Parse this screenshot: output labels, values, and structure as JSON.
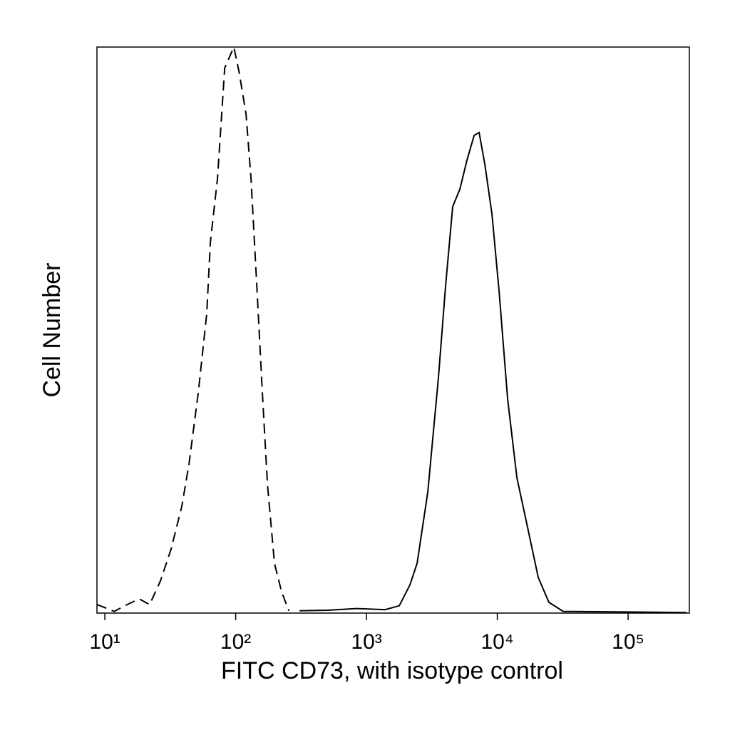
{
  "chart_data": {
    "type": "line",
    "xlabel": "FITC CD73, with isotype control",
    "ylabel": "Cell Number",
    "xscale": "log",
    "xlim": [
      8.7,
      294000
    ],
    "ylim": [
      0,
      100
    ],
    "xticks": [
      {
        "value": 10,
        "label": "10¹"
      },
      {
        "value": 100,
        "label": "10²"
      },
      {
        "value": 1000,
        "label": "10³"
      },
      {
        "value": 10000,
        "label": "10⁴"
      },
      {
        "value": 100000,
        "label": "10⁵"
      }
    ],
    "series": [
      {
        "color": "#000000",
        "line_style": "dashed",
        "x": [
          8.71,
          11.8,
          14.2,
          18.3,
          22.0,
          26.6,
          32.1,
          38.8,
          44.0,
          51.8,
          60.1,
          64.1,
          72.6,
          82.4,
          96.8,
          106,
          120,
          131,
          145,
          160,
          175,
          198,
          224,
          255
        ],
        "values": [
          1.5,
          0.3,
          1.3,
          2.5,
          1.5,
          5.7,
          11.3,
          18.9,
          26.4,
          39.0,
          52.9,
          65.5,
          76.8,
          96.3,
          100,
          95.7,
          88.2,
          76.8,
          57.9,
          39.0,
          22.7,
          8.8,
          3.8,
          0.4
        ]
      },
      {
        "color": "#000000",
        "line_style": "solid",
        "x": [
          308,
          508,
          839,
          1387,
          1782,
          2150,
          2438,
          2944,
          3550,
          4027,
          4560,
          5176,
          5863,
          6650,
          7260,
          8035,
          9100,
          10330,
          12000,
          14130,
          17060,
          20560,
          24830,
          31900,
          280000
        ],
        "values": [
          0.4,
          0.5,
          0.8,
          0.6,
          1.3,
          5.0,
          8.8,
          21.4,
          41.6,
          57.9,
          71.8,
          74.9,
          80.0,
          84.4,
          84.9,
          79.3,
          70.5,
          56.7,
          37.8,
          23.9,
          15.1,
          6.3,
          1.9,
          0.3,
          0.1
        ]
      }
    ]
  }
}
